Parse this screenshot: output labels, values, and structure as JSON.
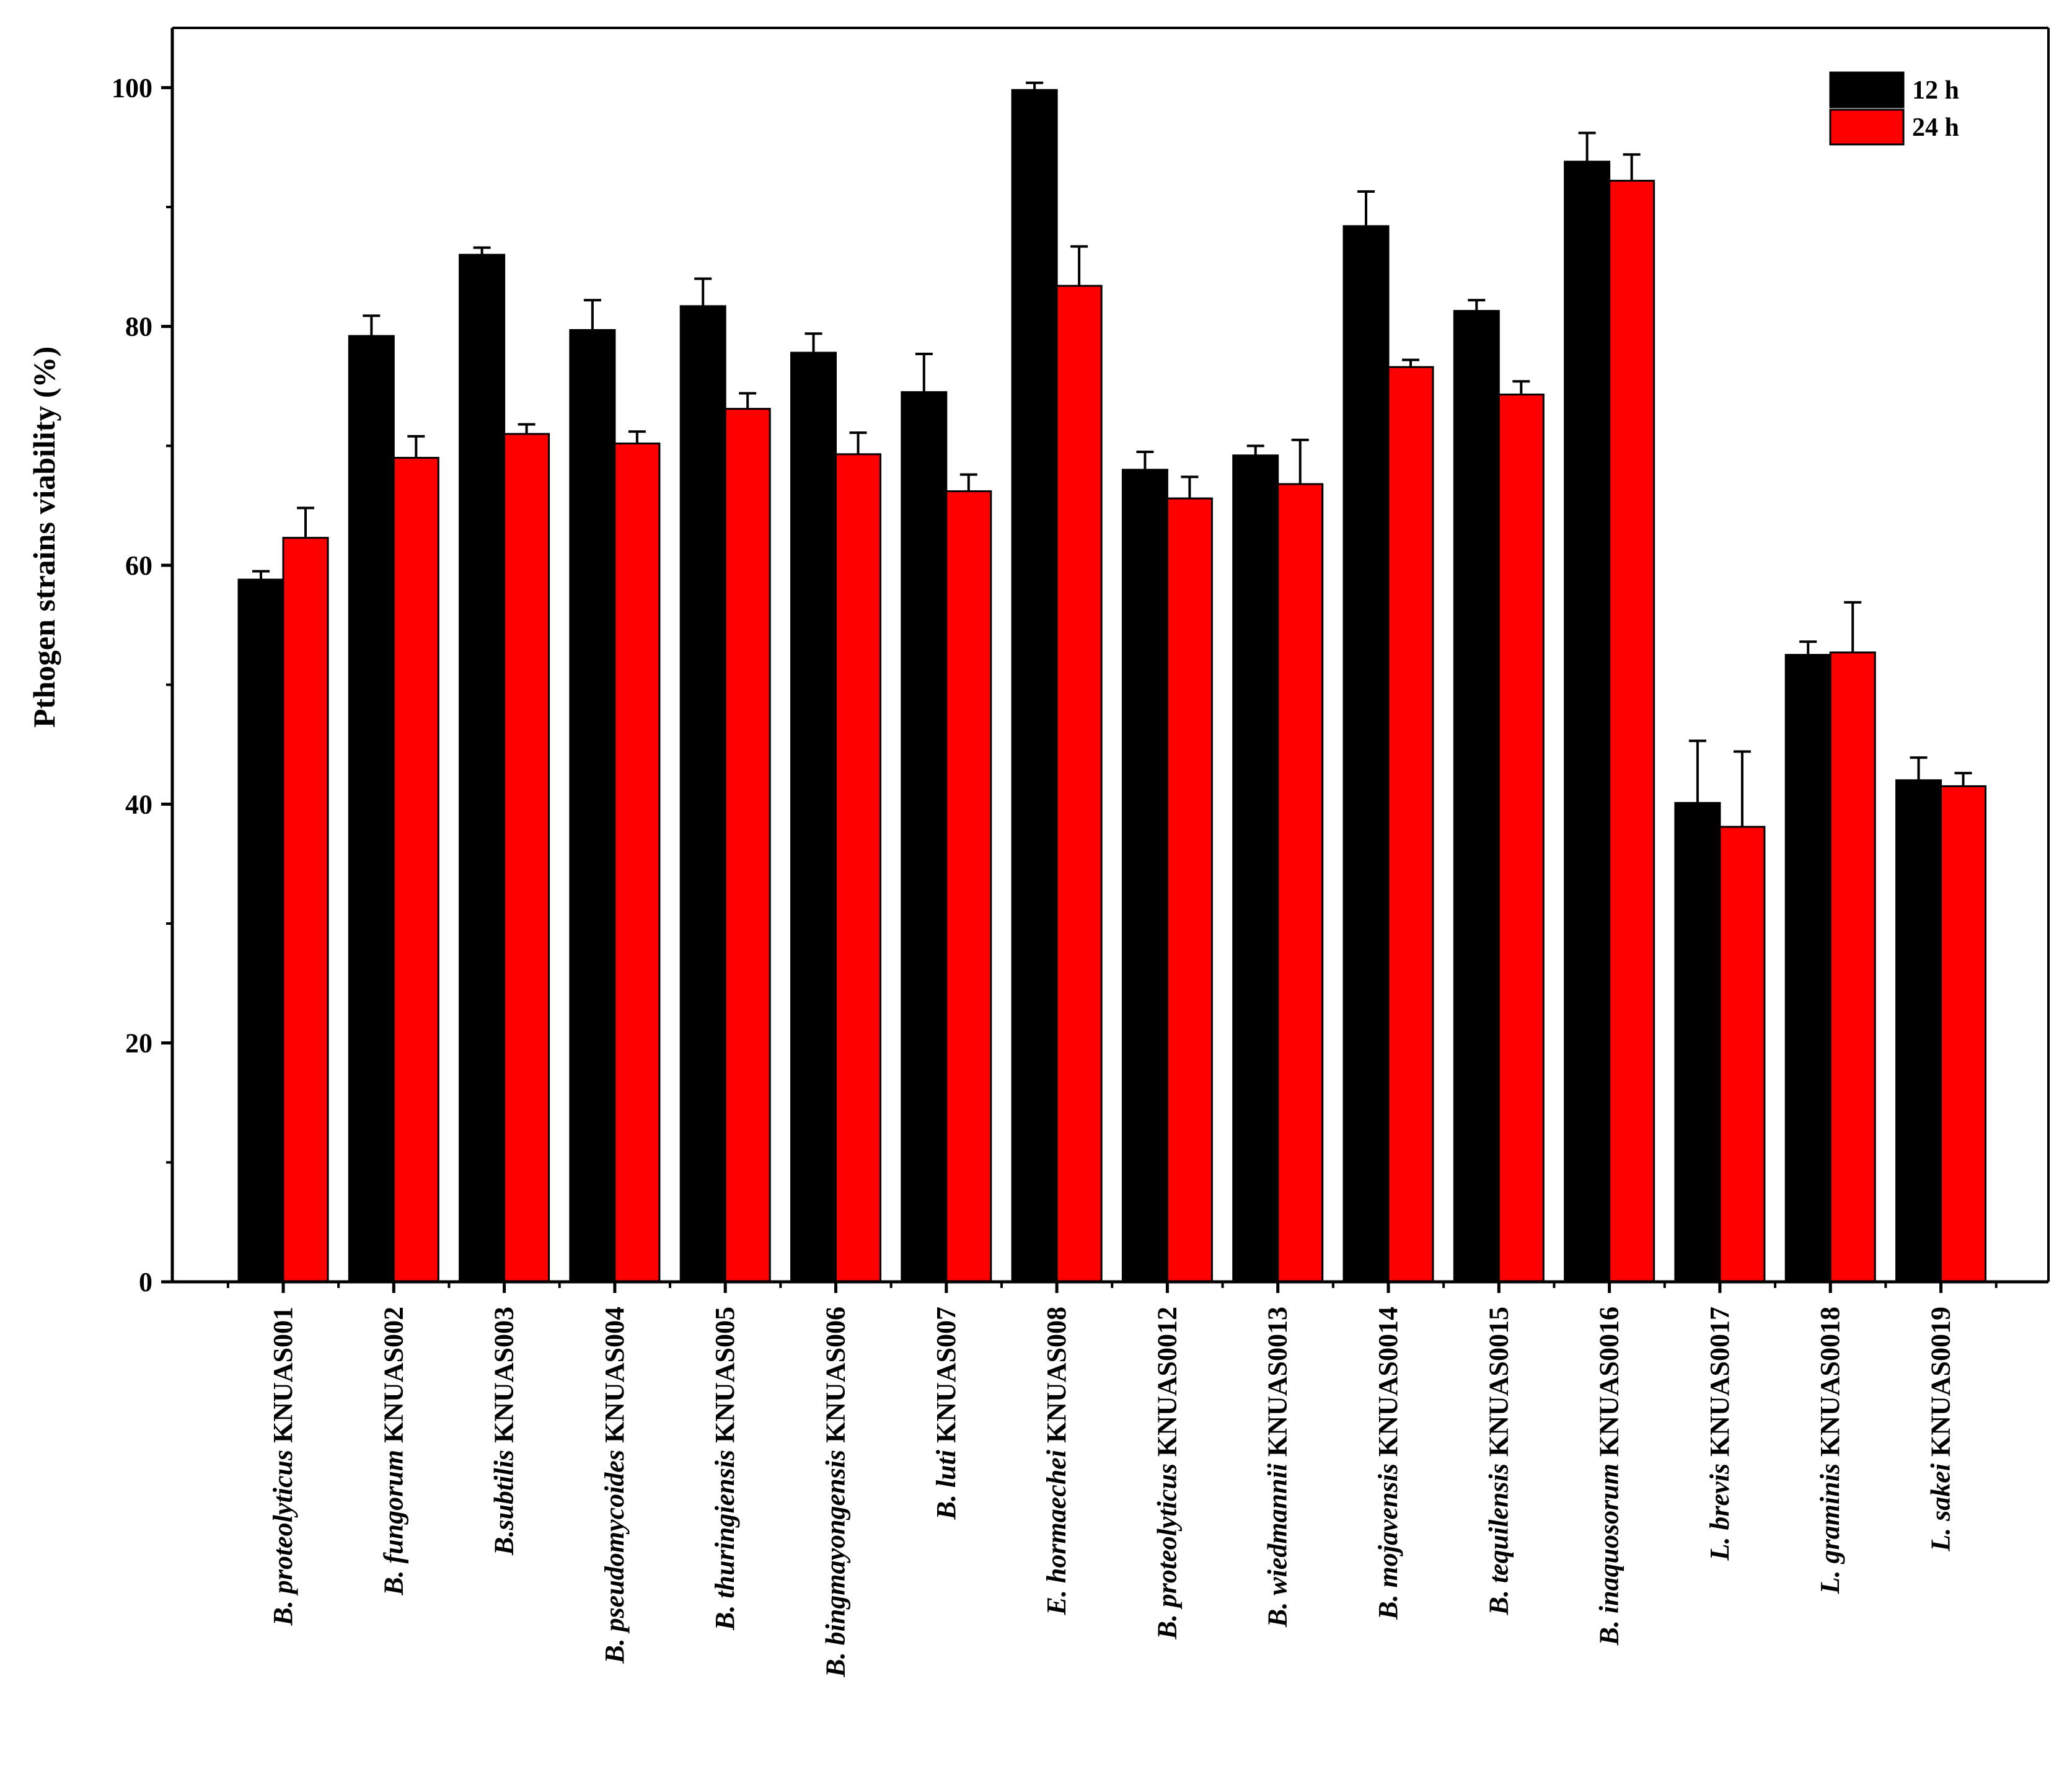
{
  "chart_data": {
    "type": "bar",
    "ylabel": "Pthogen strains viability (%)",
    "ylim": [
      0,
      105
    ],
    "yticks": [
      0,
      20,
      40,
      60,
      80,
      100
    ],
    "categories": [
      {
        "species": "B. proteolyticus",
        "strain": "KNUAS001"
      },
      {
        "species": "B. fungorum",
        "strain": "KNUAS002"
      },
      {
        "species": "B.subtilis",
        "strain": "KNUAS003"
      },
      {
        "species": "B. pseudomycoides",
        "strain": "KNUAS004"
      },
      {
        "species": "B. thuringiensis",
        "strain": "KNUAS005"
      },
      {
        "species": "B. bingmayongensis",
        "strain": "KNUAS006"
      },
      {
        "species": "B. luti",
        "strain": "KNUAS007"
      },
      {
        "species": "E. hormaechei",
        "strain": "KNUAS008"
      },
      {
        "species": "B. proteolyticus",
        "strain": "KNUAS0012"
      },
      {
        "species": "B. wiedmannii",
        "strain": "KNUAS0013"
      },
      {
        "species": "B. mojavensis",
        "strain": "KNUAS0014"
      },
      {
        "species": "B. tequilensis",
        "strain": "KNUAS0015"
      },
      {
        "species": "B. inaquosorum",
        "strain": "KNUAS0016"
      },
      {
        "species": "L. brevis",
        "strain": "KNUAS0017"
      },
      {
        "species": "L. graminis",
        "strain": "KNUAS0018"
      },
      {
        "species": "L. sakei",
        "strain": "KNUAS0019"
      }
    ],
    "series": [
      {
        "name": "12 h",
        "color": "#000000",
        "values": [
          58.8,
          79.2,
          86.0,
          79.7,
          81.7,
          77.8,
          74.5,
          99.8,
          68.0,
          69.2,
          88.4,
          81.3,
          93.8,
          40.1,
          52.5,
          42.0
        ],
        "errors": [
          0.7,
          1.7,
          0.6,
          2.5,
          2.3,
          1.6,
          3.2,
          0.6,
          1.5,
          0.8,
          2.9,
          0.9,
          2.4,
          5.2,
          1.1,
          1.9
        ]
      },
      {
        "name": "24 h",
        "color": "#ff0000",
        "values": [
          62.3,
          69.0,
          71.0,
          70.2,
          73.1,
          69.3,
          66.2,
          83.4,
          65.6,
          66.8,
          76.6,
          74.3,
          92.2,
          38.1,
          52.7,
          41.5
        ],
        "errors": [
          2.5,
          1.8,
          0.8,
          1.0,
          1.3,
          1.8,
          1.4,
          3.3,
          1.8,
          3.7,
          0.6,
          1.1,
          2.2,
          6.3,
          4.2,
          1.1
        ]
      }
    ],
    "legend": "top-right"
  }
}
